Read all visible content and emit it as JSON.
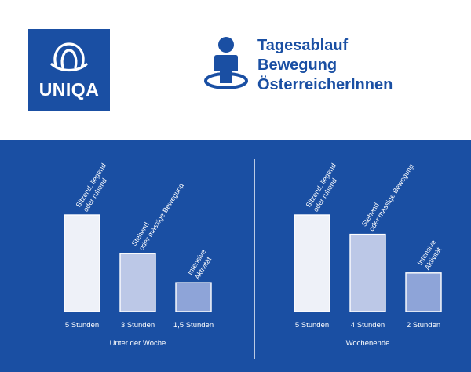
{
  "logo": {
    "text": "UNIQA",
    "color": "#1a4fa3"
  },
  "title": {
    "lines": [
      "Tagesablauf",
      "Bewegung",
      "ÖsterreicherInnen"
    ],
    "color": "#1a4fa3"
  },
  "icon": "person-standing-icon",
  "colors": {
    "panel": "#1a4fa3",
    "text": "#ffffff",
    "bar_light": "#eef1f8",
    "bar_mid": "#bcc8e7",
    "bar_dark": "#8ea4d8"
  },
  "chart_data": [
    {
      "type": "bar",
      "title": "Unter der Woche",
      "categories": [
        "Sitzend, liegend oder ruhend",
        "Stehend oder mässige Bewegung",
        "Intensive Aktivität"
      ],
      "values": [
        5,
        3,
        1.5
      ],
      "value_labels": [
        "5 Stunden",
        "3 Stunden",
        "1,5 Stunden"
      ],
      "unit": "Stunden",
      "ylim": [
        0,
        5
      ],
      "grid": false
    },
    {
      "type": "bar",
      "title": "Wochenende",
      "categories": [
        "Sitzend, liegend oder ruhend",
        "Stehend oder mässige Bewegung",
        "Intensive Aktivität"
      ],
      "values": [
        5,
        4,
        2
      ],
      "value_labels": [
        "5 Stunden",
        "4 Stunden",
        "2 Stunden"
      ],
      "unit": "Stunden",
      "ylim": [
        0,
        5
      ],
      "grid": false
    }
  ]
}
